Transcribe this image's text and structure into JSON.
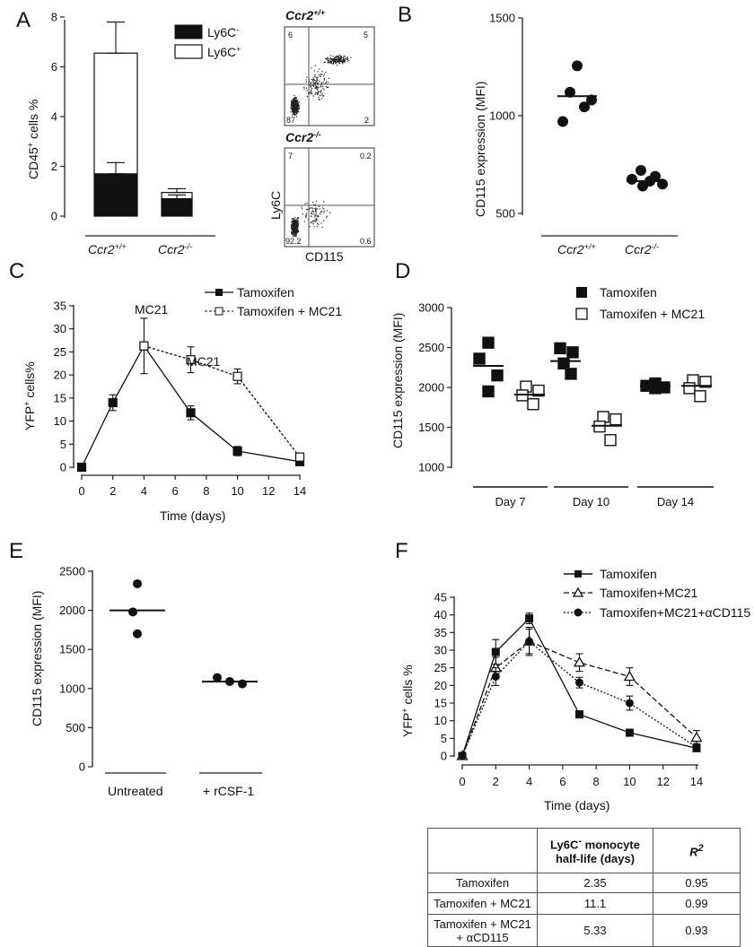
{
  "panels": {
    "A": "A",
    "B": "B",
    "C": "C",
    "D": "D",
    "E": "E",
    "F": "F"
  },
  "colors": {
    "black": "#111111",
    "white": "#ffffff",
    "grey": "#777777"
  },
  "chart_data": [
    {
      "id": "A",
      "type": "bar",
      "stacked": true,
      "ylabel_main": "CD45",
      "ylabel_sup": "+",
      "ylabel_tail": " cells %",
      "ylim": [
        0,
        8
      ],
      "yticks": [
        "0",
        "2",
        "4",
        "6",
        "8"
      ],
      "categories": [
        {
          "main": "Ccr2",
          "sup": "+/+"
        },
        {
          "main": "Ccr2",
          "sup": "-/-"
        }
      ],
      "series": [
        {
          "name_main": "Ly6C",
          "name_sup": "-",
          "color": "#111111",
          "values": [
            1.7,
            0.7
          ],
          "errors": [
            0.45,
            0.15
          ]
        },
        {
          "name_main": "Ly6C",
          "name_sup": "+",
          "color": "#ffffff",
          "values": [
            4.85,
            0.25
          ],
          "errors": [
            1.25,
            0.15
          ]
        }
      ]
    },
    {
      "id": "A-flow",
      "type": "scatter",
      "xlabel": "CD115",
      "ylabel": "Ly6C",
      "plots": [
        {
          "title_main": "Ccr2",
          "title_sup": "+/+",
          "quadrants": [
            "6",
            "5",
            "87",
            "2"
          ]
        },
        {
          "title_main": "Ccr2",
          "title_sup": "-/-",
          "quadrants": [
            "7",
            "0.2",
            "92.2",
            "0.6"
          ]
        }
      ]
    },
    {
      "id": "B",
      "type": "scatter",
      "ylabel": "CD115 expression (MFI)",
      "ylim": [
        500,
        1500
      ],
      "yticks": [
        "500",
        "1000",
        "1500"
      ],
      "categories": [
        {
          "main": "Ccr2",
          "sup": "+/+"
        },
        {
          "main": "Ccr2",
          "sup": "-/-"
        }
      ],
      "groups": [
        {
          "points": [
            1255,
            1120,
            1080,
            1045,
            970
          ],
          "mean": 1100
        },
        {
          "points": [
            720,
            690,
            675,
            665,
            650,
            640
          ],
          "mean": 665
        }
      ]
    },
    {
      "id": "C",
      "type": "line",
      "xlabel": "Time (days)",
      "ylabel_main": "YFP",
      "ylabel_sup": "+",
      "ylabel_tail": " cells%",
      "xlim": [
        0,
        14
      ],
      "ylim": [
        0,
        35
      ],
      "xticks": [
        "0",
        "2",
        "4",
        "6",
        "8",
        "10",
        "12",
        "14"
      ],
      "yticks": [
        "0",
        "5",
        "10",
        "15",
        "20",
        "25",
        "30",
        "35"
      ],
      "series": [
        {
          "name": "Tamoxifen",
          "dashed": false,
          "filled": true,
          "x": [
            0,
            2,
            4,
            7,
            10,
            14
          ],
          "y": [
            0,
            14,
            26.3,
            11.8,
            3.5,
            1.2
          ],
          "err": [
            0,
            1.7,
            6,
            1.5,
            1,
            0.6
          ]
        },
        {
          "name": "Tamoxifen + MC21",
          "dashed": true,
          "filled": false,
          "x": [
            4,
            7,
            10,
            14
          ],
          "y": [
            26.3,
            23.3,
            19.7,
            2.2
          ],
          "err": [
            0,
            2.8,
            1.6,
            0.5
          ]
        }
      ],
      "annotations": [
        "MC21",
        "MC21"
      ]
    },
    {
      "id": "D",
      "type": "scatter",
      "ylabel": "CD115  expression (MFI)",
      "ylim": [
        1000,
        3000
      ],
      "yticks": [
        "1000",
        "1500",
        "2000",
        "2500",
        "3000"
      ],
      "categories": [
        "Day 7",
        "Day 10",
        "Day 14"
      ],
      "series": [
        {
          "name": "Tamoxifen",
          "filled": true,
          "groups": [
            [
              2560,
              2360,
              2150,
              1950
            ],
            [
              2490,
              2440,
              2300,
              2170
            ],
            [
              2050,
              2020,
              2000,
              1990
            ]
          ],
          "means": [
            2270,
            2330,
            2020
          ]
        },
        {
          "name": "Tamoxifen + MC21",
          "filled": false,
          "groups": [
            [
              2010,
              1960,
              1900,
              1790
            ],
            [
              1630,
              1600,
              1510,
              1340
            ],
            [
              2090,
              2070,
              1990,
              1890
            ]
          ],
          "means": [
            1910,
            1520,
            2020
          ]
        }
      ]
    },
    {
      "id": "E",
      "type": "scatter",
      "ylabel": "CD115 expression (MFI)",
      "ylim": [
        0,
        2500
      ],
      "yticks": [
        "0",
        "500",
        "1000",
        "1500",
        "2000",
        "2500"
      ],
      "categories": [
        "Untreated",
        "+ rCSF-1"
      ],
      "groups": [
        {
          "points": [
            2340,
            1980,
            1700
          ],
          "mean": 2000
        },
        {
          "points": [
            1140,
            1090,
            1060
          ],
          "mean": 1090
        }
      ]
    },
    {
      "id": "F",
      "type": "line",
      "xlabel": "Time (days)",
      "ylabel_main": "YFP",
      "ylabel_sup": "+",
      "ylabel_tail": " cells %",
      "xlim": [
        0,
        14
      ],
      "ylim": [
        0,
        45
      ],
      "xticks": [
        "0",
        "2",
        "4",
        "6",
        "8",
        "10",
        "12",
        "14"
      ],
      "yticks": [
        "0",
        "5",
        "10",
        "15",
        "20",
        "25",
        "30",
        "35",
        "40",
        "45"
      ],
      "series": [
        {
          "name": "Tamoxifen",
          "style": "solid",
          "marker": "square",
          "x": [
            0,
            2,
            4,
            7,
            10,
            14
          ],
          "y": [
            0,
            29.5,
            39,
            11.8,
            6.6,
            2.2
          ],
          "err": [
            0,
            3.5,
            1.5,
            1,
            0.6,
            0.5
          ]
        },
        {
          "name": "Tamoxifen+MC21",
          "style": "dashed",
          "marker": "triangle",
          "x": [
            0,
            2,
            4,
            7,
            10,
            14
          ],
          "y": [
            0,
            25,
            32.5,
            26.5,
            22.5,
            5.2
          ],
          "err": [
            0,
            3,
            3.5,
            2.5,
            2.5,
            2
          ]
        },
        {
          "name": "Tamoxifen+MC21+αCD115",
          "style": "dotted",
          "marker": "circle",
          "x": [
            0,
            2,
            4,
            7,
            10,
            14
          ],
          "y": [
            0,
            22.5,
            32.5,
            20.8,
            15,
            2.5
          ],
          "err": [
            0,
            2.5,
            4,
            1.5,
            2,
            1
          ]
        }
      ]
    }
  ],
  "table": {
    "header": [
      "",
      "Ly6C",
      "-",
      " monocyte half-life (days)",
      "R",
      "2"
    ],
    "rows": [
      [
        "Tamoxifen",
        "2.35",
        "0.95"
      ],
      [
        "Tamoxifen + MC21",
        "11.1",
        "0.99"
      ],
      [
        "Tamoxifen + MC21 + αCD115",
        "5.33",
        "0.93"
      ]
    ]
  }
}
